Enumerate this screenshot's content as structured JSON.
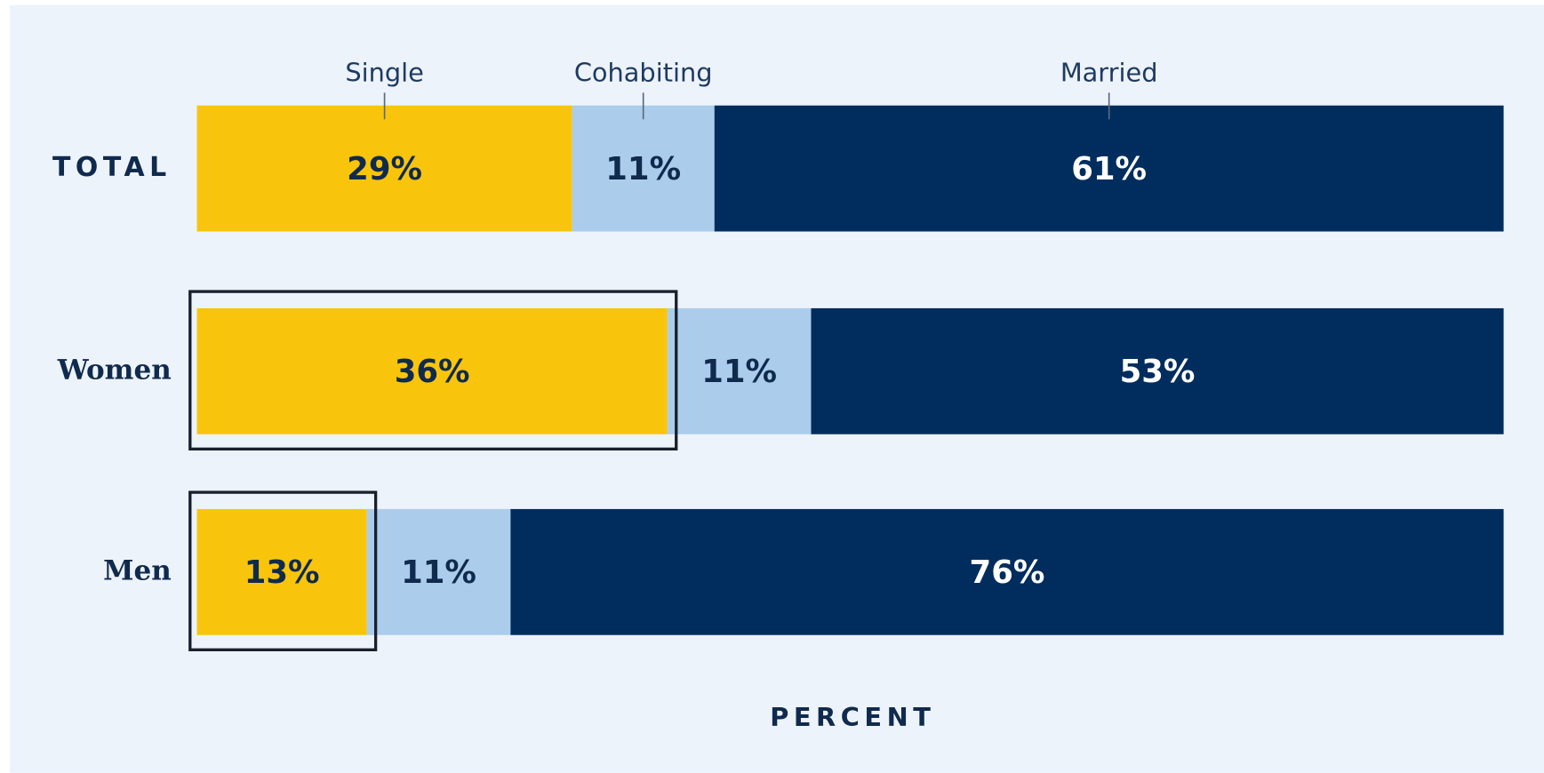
{
  "chart_data": {
    "type": "stacked_bar_horizontal",
    "x_label": "PERCENT",
    "categories": [
      "TOTAL",
      "Women",
      "Men"
    ],
    "series": [
      {
        "name": "Single",
        "color": "#f9c50c",
        "label_color": "#0f2a4d",
        "values": [
          29,
          36,
          13
        ],
        "value_labels": [
          "29%",
          "36%",
          "13%"
        ]
      },
      {
        "name": "Cohabiting",
        "color": "#abcdeb",
        "label_color": "#0f2a4d",
        "values": [
          11,
          11,
          11
        ],
        "value_labels": [
          "11%",
          "11%",
          "11%"
        ]
      },
      {
        "name": "Married",
        "color": "#002d5e",
        "label_color": "#ffffff",
        "values": [
          61,
          53,
          76
        ],
        "value_labels": [
          "61%",
          "53%",
          "76%"
        ]
      }
    ],
    "highlighted_categories": [
      "Women",
      "Men"
    ]
  }
}
